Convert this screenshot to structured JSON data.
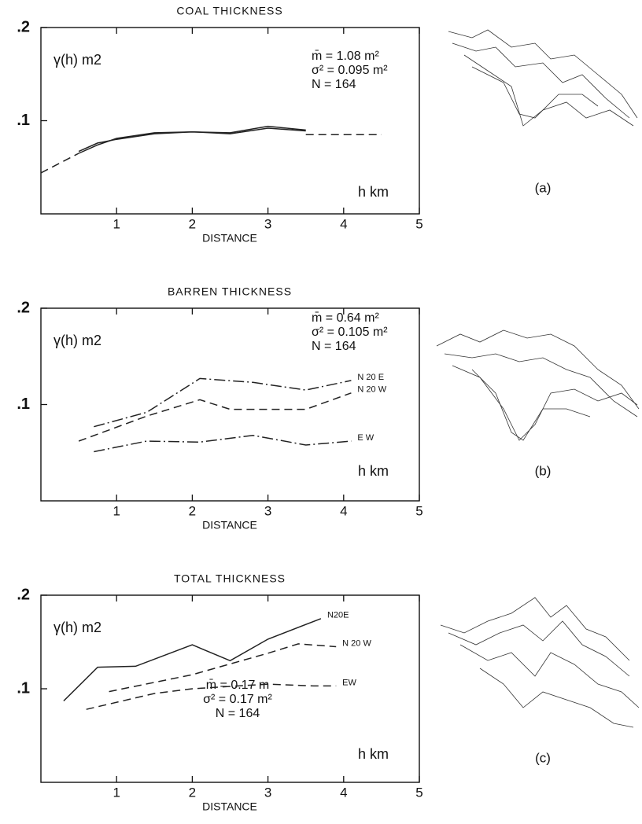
{
  "chart_data": [
    {
      "type": "line",
      "title": "COAL  THICKNESS",
      "x_label": "DISTANCE",
      "y_label": "γ(h) m2",
      "x_unit": "h  km",
      "panel_label": "(a)",
      "stats": [
        "m̄ = 1.08  m²",
        "σ² = 0.095 m²",
        "N = 164"
      ],
      "xlim": [
        0,
        5
      ],
      "ylim": [
        0,
        0.2
      ],
      "xticks": [
        1,
        2,
        3,
        4,
        5
      ],
      "yticks": [
        {
          "value": 0.1,
          "label": ".1"
        },
        {
          "value": 0.2,
          "label": ".2"
        }
      ],
      "series": [
        {
          "color": "#222222",
          "dash": "solid",
          "x": [
            0.5,
            0.75,
            1,
            1.5,
            2,
            2.5,
            3,
            3.5
          ],
          "values": [
            0.067,
            0.076,
            0.08,
            0.086,
            0.088,
            0.087,
            0.094,
            0.09
          ]
        },
        {
          "color": "#222222",
          "dash": "solid",
          "x": [
            0.5,
            0.75,
            1,
            1.5,
            2,
            2.5,
            3,
            3.5
          ],
          "values": [
            0.065,
            0.074,
            0.081,
            0.087,
            0.088,
            0.086,
            0.092,
            0.089
          ]
        },
        {
          "color": "#222222",
          "dash": "dashed",
          "x": [
            0,
            0.5,
            3,
            3.5,
            4,
            4.5
          ],
          "values": [
            0.044,
            0.065,
            null,
            0.085,
            0.085,
            0.085
          ]
        }
      ]
    },
    {
      "type": "line",
      "title": "BARREN  THICKNESS",
      "x_label": "DISTANCE",
      "y_label": "γ(h) m2",
      "x_unit": "h  km",
      "panel_label": "(b)",
      "stats": [
        "m̄ = 0.64  m²",
        "σ² = 0.105 m²",
        "N = 164"
      ],
      "xlim": [
        0,
        5
      ],
      "ylim": [
        0,
        0.2
      ],
      "xticks": [
        1,
        2,
        3,
        4,
        5
      ],
      "yticks": [
        {
          "value": 0.1,
          "label": ".1"
        },
        {
          "value": 0.2,
          "label": ".2"
        }
      ],
      "series": [
        {
          "name": "N 20 E",
          "color": "#222222",
          "dash": "dashdot",
          "x": [
            0.7,
            1.4,
            2.1,
            2.8,
            3.5,
            4.1
          ],
          "values": [
            0.077,
            0.092,
            0.127,
            0.123,
            0.115,
            0.125
          ]
        },
        {
          "name": "N 20 W",
          "color": "#222222",
          "dash": "dashed",
          "x": [
            0.5,
            1.4,
            2.1,
            2.5,
            3.5,
            4.1
          ],
          "values": [
            0.062,
            0.088,
            0.105,
            0.095,
            0.095,
            0.112
          ]
        },
        {
          "name": "E W",
          "color": "#222222",
          "dash": "dashdot",
          "x": [
            0.7,
            1.4,
            2.1,
            2.8,
            3.5,
            4.1
          ],
          "values": [
            0.051,
            0.062,
            0.061,
            0.068,
            0.058,
            0.062
          ]
        }
      ]
    },
    {
      "type": "line",
      "title": "TOTAL  THICKNESS",
      "x_label": "DISTANCE",
      "y_label": "γ(h) m2",
      "x_unit": "h  km",
      "panel_label": "(c)",
      "stats": [
        "m̄ = 0.17  m",
        "σ² = 0.17  m²",
        "N = 164"
      ],
      "xlim": [
        0,
        5
      ],
      "ylim": [
        0,
        0.2
      ],
      "xticks": [
        1,
        2,
        3,
        4,
        5
      ],
      "yticks": [
        {
          "value": 0.1,
          "label": ".1"
        },
        {
          "value": 0.2,
          "label": ".2"
        }
      ],
      "series": [
        {
          "name": "N20E",
          "color": "#222222",
          "dash": "solid",
          "x": [
            0.3,
            0.75,
            1.25,
            2,
            2.5,
            3,
            3.7
          ],
          "values": [
            0.087,
            0.123,
            0.124,
            0.147,
            0.13,
            0.153,
            0.175
          ]
        },
        {
          "name": "N 20 W",
          "color": "#222222",
          "dash": "dashed",
          "x": [
            0.9,
            2,
            3,
            3.4,
            3.9
          ],
          "values": [
            0.097,
            0.115,
            0.138,
            0.148,
            0.145
          ]
        },
        {
          "name": "EW",
          "color": "#222222",
          "dash": "dashed",
          "x": [
            0.6,
            1.5,
            2,
            3,
            3.6,
            3.9
          ],
          "values": [
            0.078,
            0.095,
            0.1,
            0.105,
            0.103,
            0.103
          ]
        }
      ]
    }
  ]
}
